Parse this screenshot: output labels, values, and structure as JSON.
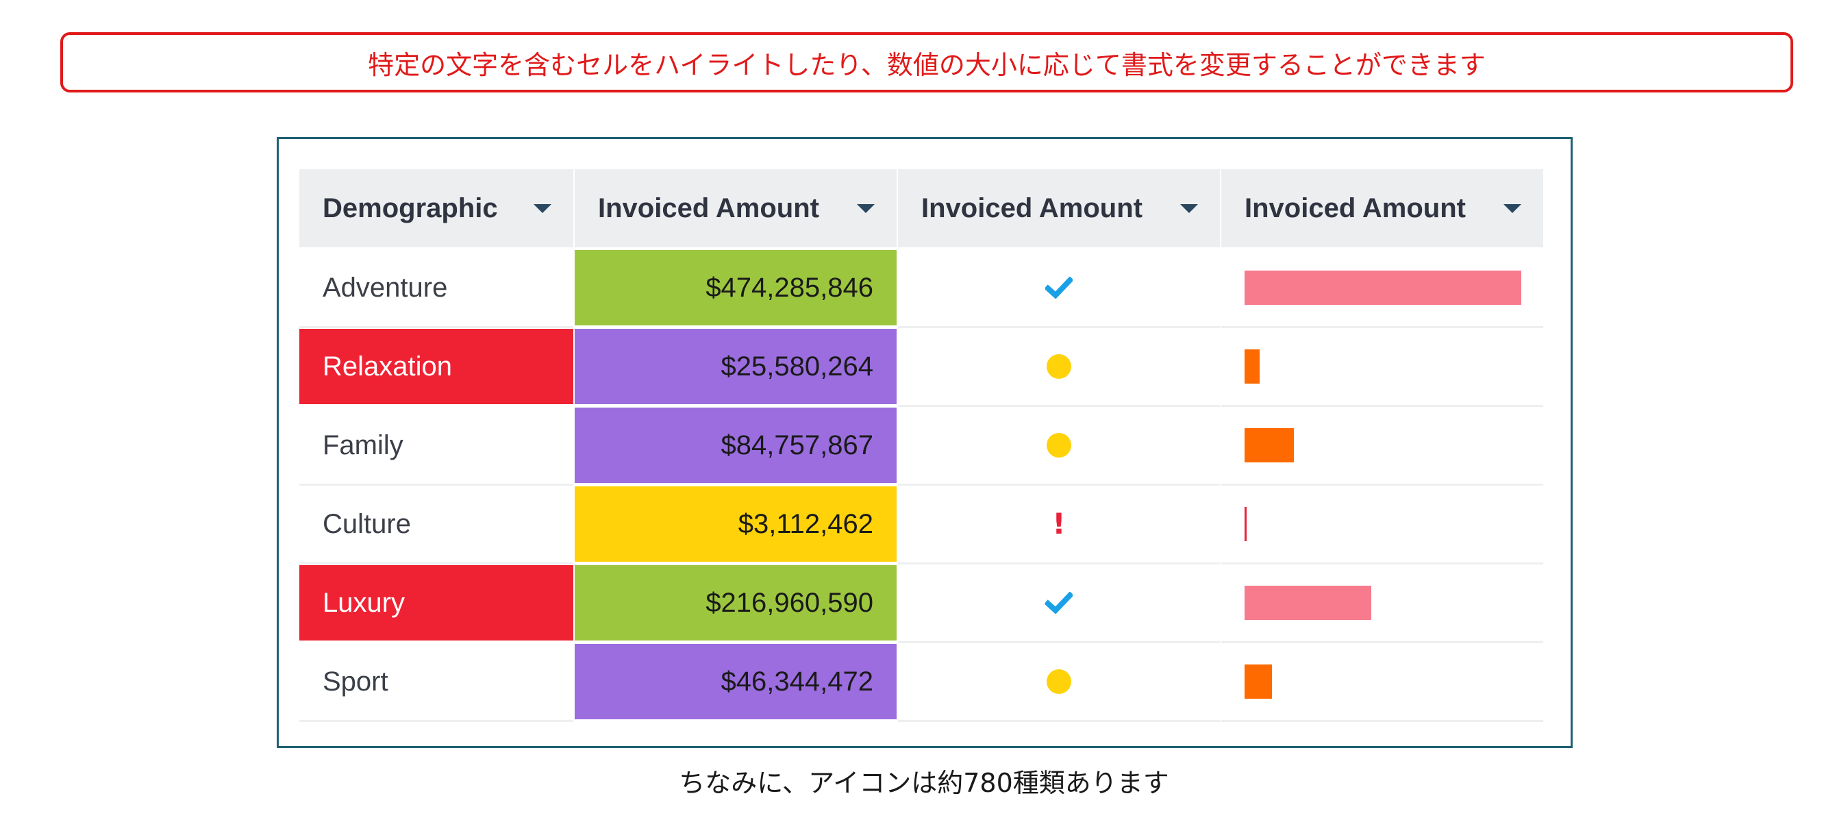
{
  "banner": {
    "text": "特定の文字を含むセルをハイライトしたり、数値の大小に応じて書式を変更することができます"
  },
  "table": {
    "headers": [
      {
        "label": "Demographic",
        "icon": "sort-caret-icon"
      },
      {
        "label": "Invoiced Amount",
        "icon": "sort-caret-icon"
      },
      {
        "label": "Invoiced Amount",
        "icon": "sort-caret-icon"
      },
      {
        "label": "Invoiced Amount",
        "icon": "sort-caret-icon"
      }
    ],
    "rows": [
      {
        "name": "Adventure",
        "name_highlight": false,
        "amount": "$474,285,846",
        "amount_color": "#9dc63f",
        "status_icon": "check-icon",
        "bar_level": 1.0,
        "bar_color": "#f77b8d"
      },
      {
        "name": "Relaxation",
        "name_highlight": true,
        "amount": "$25,580,264",
        "amount_color": "#9b6ddf",
        "status_icon": "dot-icon",
        "bar_level": 0.054,
        "bar_color": "#ff6a00"
      },
      {
        "name": "Family",
        "name_highlight": false,
        "amount": "$84,757,867",
        "amount_color": "#9b6ddf",
        "status_icon": "dot-icon",
        "bar_level": 0.179,
        "bar_color": "#ff6a00"
      },
      {
        "name": "Culture",
        "name_highlight": false,
        "amount": "$3,112,462",
        "amount_color": "#ffd20a",
        "status_icon": "exclamation-icon",
        "bar_level": 0.007,
        "bar_color": "#e8223a"
      },
      {
        "name": "Luxury",
        "name_highlight": true,
        "amount": "$216,960,590",
        "amount_color": "#9dc63f",
        "status_icon": "check-icon",
        "bar_level": 0.457,
        "bar_color": "#f77b8d"
      },
      {
        "name": "Sport",
        "name_highlight": false,
        "amount": "$46,344,472",
        "amount_color": "#9b6ddf",
        "status_icon": "dot-icon",
        "bar_level": 0.098,
        "bar_color": "#ff6a00"
      }
    ]
  },
  "caption": {
    "text": "ちなみに、アイコンは約780種類あります"
  },
  "colors": {
    "highlight_red": "#ee2233",
    "check_blue": "#1aa0e6",
    "dot_yellow": "#ffd20a",
    "exclamation_red": "#e8223a",
    "banner_red": "#e01a1a",
    "panel_border": "#1f6272"
  }
}
